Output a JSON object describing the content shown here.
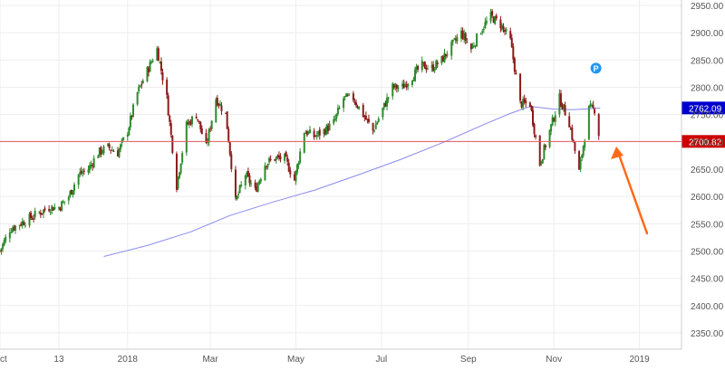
{
  "chart_data": {
    "type": "candlestick",
    "title": "",
    "xlabel": "",
    "ylabel": "",
    "ylim": [
      2320,
      2960
    ],
    "y_ticks": [
      2350,
      2400,
      2450,
      2500,
      2550,
      2600,
      2650,
      2700,
      2750,
      2800,
      2850,
      2900,
      2950
    ],
    "y_tick_labels": [
      "2350.00",
      "2400.00",
      "2450.00",
      "2500.00",
      "2550.00",
      "2600.00",
      "2650.00",
      "2700.00",
      "2750.00",
      "2800.00",
      "2850.00",
      "2900.00",
      "2950.00"
    ],
    "x_range": [
      "2017-10-02",
      "2019-01-31"
    ],
    "x_ticks": [
      {
        "date": "2017-10-02",
        "label": "Oct"
      },
      {
        "date": "2017-11-13",
        "label": "13"
      },
      {
        "date": "2018-01-01",
        "label": "2018"
      },
      {
        "date": "2018-03-01",
        "label": "Mar"
      },
      {
        "date": "2018-05-01",
        "label": "May"
      },
      {
        "date": "2018-07-01",
        "label": "Jul"
      },
      {
        "date": "2018-09-01",
        "label": "Sep"
      },
      {
        "date": "2018-11-01",
        "label": "Nov"
      },
      {
        "date": "2019-01-01",
        "label": "2019"
      }
    ],
    "grid": true,
    "legend": "none",
    "colors": {
      "up": "#2e8b2e",
      "down": "#8b1a1a",
      "ma": "#8a8aee",
      "hline": "#e85c5c",
      "arrow": "#ff6a1a",
      "price_tag": "#0000cc",
      "hline_tag": "#cc0000",
      "p_marker": "#2196f3"
    },
    "ohlc_points": [
      {
        "date": "2017-10-02",
        "c": 2500
      },
      {
        "date": "2017-10-09",
        "c": 2540
      },
      {
        "date": "2017-10-16",
        "c": 2550
      },
      {
        "date": "2017-10-23",
        "c": 2560
      },
      {
        "date": "2017-10-30",
        "c": 2570
      },
      {
        "date": "2017-11-06",
        "c": 2580
      },
      {
        "date": "2017-11-13",
        "c": 2580
      },
      {
        "date": "2017-11-20",
        "c": 2600
      },
      {
        "date": "2017-11-27",
        "c": 2640
      },
      {
        "date": "2017-12-04",
        "c": 2650
      },
      {
        "date": "2017-12-11",
        "c": 2680
      },
      {
        "date": "2017-12-18",
        "c": 2690
      },
      {
        "date": "2017-12-25",
        "c": 2680
      },
      {
        "date": "2018-01-01",
        "c": 2720
      },
      {
        "date": "2018-01-08",
        "c": 2790
      },
      {
        "date": "2018-01-15",
        "c": 2830
      },
      {
        "date": "2018-01-22",
        "c": 2870
      },
      {
        "date": "2018-01-29",
        "c": 2780
      },
      {
        "date": "2018-02-05",
        "c": 2620
      },
      {
        "date": "2018-02-12",
        "c": 2730
      },
      {
        "date": "2018-02-19",
        "c": 2750
      },
      {
        "date": "2018-02-26",
        "c": 2690
      },
      {
        "date": "2018-03-05",
        "c": 2780
      },
      {
        "date": "2018-03-12",
        "c": 2750
      },
      {
        "date": "2018-03-19",
        "c": 2590
      },
      {
        "date": "2018-03-26",
        "c": 2640
      },
      {
        "date": "2018-04-02",
        "c": 2610
      },
      {
        "date": "2018-04-09",
        "c": 2660
      },
      {
        "date": "2018-04-16",
        "c": 2670
      },
      {
        "date": "2018-04-23",
        "c": 2670
      },
      {
        "date": "2018-04-30",
        "c": 2630
      },
      {
        "date": "2018-05-07",
        "c": 2720
      },
      {
        "date": "2018-05-14",
        "c": 2710
      },
      {
        "date": "2018-05-21",
        "c": 2720
      },
      {
        "date": "2018-05-28",
        "c": 2735
      },
      {
        "date": "2018-06-04",
        "c": 2780
      },
      {
        "date": "2018-06-11",
        "c": 2780
      },
      {
        "date": "2018-06-18",
        "c": 2750
      },
      {
        "date": "2018-06-25",
        "c": 2720
      },
      {
        "date": "2018-07-02",
        "c": 2760
      },
      {
        "date": "2018-07-09",
        "c": 2800
      },
      {
        "date": "2018-07-16",
        "c": 2800
      },
      {
        "date": "2018-07-23",
        "c": 2820
      },
      {
        "date": "2018-07-30",
        "c": 2840
      },
      {
        "date": "2018-08-06",
        "c": 2835
      },
      {
        "date": "2018-08-13",
        "c": 2850
      },
      {
        "date": "2018-08-20",
        "c": 2875
      },
      {
        "date": "2018-08-27",
        "c": 2900
      },
      {
        "date": "2018-09-03",
        "c": 2870
      },
      {
        "date": "2018-09-10",
        "c": 2905
      },
      {
        "date": "2018-09-17",
        "c": 2930
      },
      {
        "date": "2018-09-24",
        "c": 2915
      },
      {
        "date": "2018-10-01",
        "c": 2885
      },
      {
        "date": "2018-10-08",
        "c": 2770
      },
      {
        "date": "2018-10-15",
        "c": 2770
      },
      {
        "date": "2018-10-22",
        "c": 2660
      },
      {
        "date": "2018-10-29",
        "c": 2720
      },
      {
        "date": "2018-11-05",
        "c": 2780
      },
      {
        "date": "2018-11-12",
        "c": 2735
      },
      {
        "date": "2018-11-19",
        "c": 2645
      },
      {
        "date": "2018-11-26",
        "c": 2760
      },
      {
        "date": "2018-11-30",
        "c": 2760
      },
      {
        "date": "2018-12-04",
        "c": 2700
      }
    ],
    "moving_average": [
      {
        "date": "2017-12-15",
        "v": 2490
      },
      {
        "date": "2018-01-15",
        "v": 2510
      },
      {
        "date": "2018-02-15",
        "v": 2535
      },
      {
        "date": "2018-03-15",
        "v": 2565
      },
      {
        "date": "2018-04-15",
        "v": 2590
      },
      {
        "date": "2018-05-15",
        "v": 2612
      },
      {
        "date": "2018-06-15",
        "v": 2640
      },
      {
        "date": "2018-07-15",
        "v": 2668
      },
      {
        "date": "2018-08-15",
        "v": 2700
      },
      {
        "date": "2018-09-15",
        "v": 2735
      },
      {
        "date": "2018-10-01",
        "v": 2752
      },
      {
        "date": "2018-10-15",
        "v": 2765
      },
      {
        "date": "2018-11-01",
        "v": 2760
      },
      {
        "date": "2018-11-15",
        "v": 2759
      },
      {
        "date": "2018-12-04",
        "v": 2762
      }
    ],
    "hline_value": 2700.82,
    "price_tag_label": "2762.09",
    "price_tag_value": 2762.09,
    "hline_tag_label": "2700.82",
    "p_marker_label": "P",
    "p_marker_date": "2018-12-01",
    "p_marker_value": 2835
  }
}
